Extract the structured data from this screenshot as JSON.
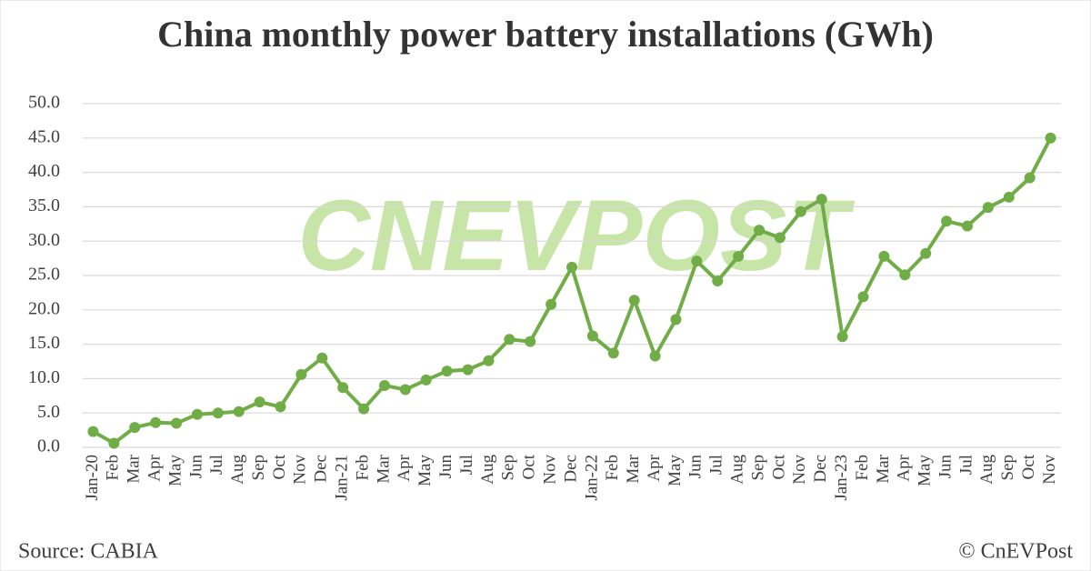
{
  "chart_data": {
    "type": "line",
    "title": "China monthly power battery installations (GWh)",
    "categories": [
      "Jan-20",
      "Feb",
      "Mar",
      "Apr",
      "May",
      "Jun",
      "Jul",
      "Aug",
      "Sep",
      "Oct",
      "Nov",
      "Dec",
      "Jan-21",
      "Feb",
      "Mar",
      "Apr",
      "May",
      "Jun",
      "Jul",
      "Aug",
      "Sep",
      "Oct",
      "Nov",
      "Dec",
      "Jan-22",
      "Feb",
      "Mar",
      "Apr",
      "May",
      "Jun",
      "Jul",
      "Aug",
      "Sep",
      "Oct",
      "Nov",
      "Dec",
      "Jan-23",
      "Feb",
      "Mar",
      "Apr",
      "May",
      "Jun",
      "Jul",
      "Aug",
      "Sep",
      "Oct",
      "Nov"
    ],
    "series": [
      {
        "name": "Installations",
        "color": "#70ad47",
        "values": [
          2.3,
          0.6,
          2.9,
          3.6,
          3.5,
          4.8,
          5.0,
          5.2,
          6.6,
          5.9,
          10.6,
          13.0,
          8.7,
          5.6,
          9.0,
          8.4,
          9.8,
          11.1,
          11.3,
          12.6,
          15.7,
          15.4,
          20.8,
          26.2,
          16.2,
          13.7,
          21.4,
          13.3,
          18.6,
          27.1,
          24.2,
          27.8,
          31.6,
          30.5,
          34.3,
          36.1,
          16.1,
          21.9,
          27.8,
          25.1,
          28.2,
          32.9,
          32.2,
          34.9,
          36.4,
          39.2,
          45.0
        ]
      }
    ],
    "ylim": [
      0,
      50
    ],
    "yticks": [
      {
        "value": 0,
        "label": "0.0"
      },
      {
        "value": 5,
        "label": "5.0"
      },
      {
        "value": 10,
        "label": "10.0"
      },
      {
        "value": 15,
        "label": "15.0"
      },
      {
        "value": 20,
        "label": "20.0"
      },
      {
        "value": 25,
        "label": "25.0"
      },
      {
        "value": 30,
        "label": "30.0"
      },
      {
        "value": 35,
        "label": "35.0"
      },
      {
        "value": 40,
        "label": "40.0"
      },
      {
        "value": 45,
        "label": "45.0"
      },
      {
        "value": 50,
        "label": "50.0"
      }
    ],
    "grid": true,
    "watermark": "CNEVPOST",
    "source": "Source: CABIA",
    "credit": "© CnEVPost"
  }
}
